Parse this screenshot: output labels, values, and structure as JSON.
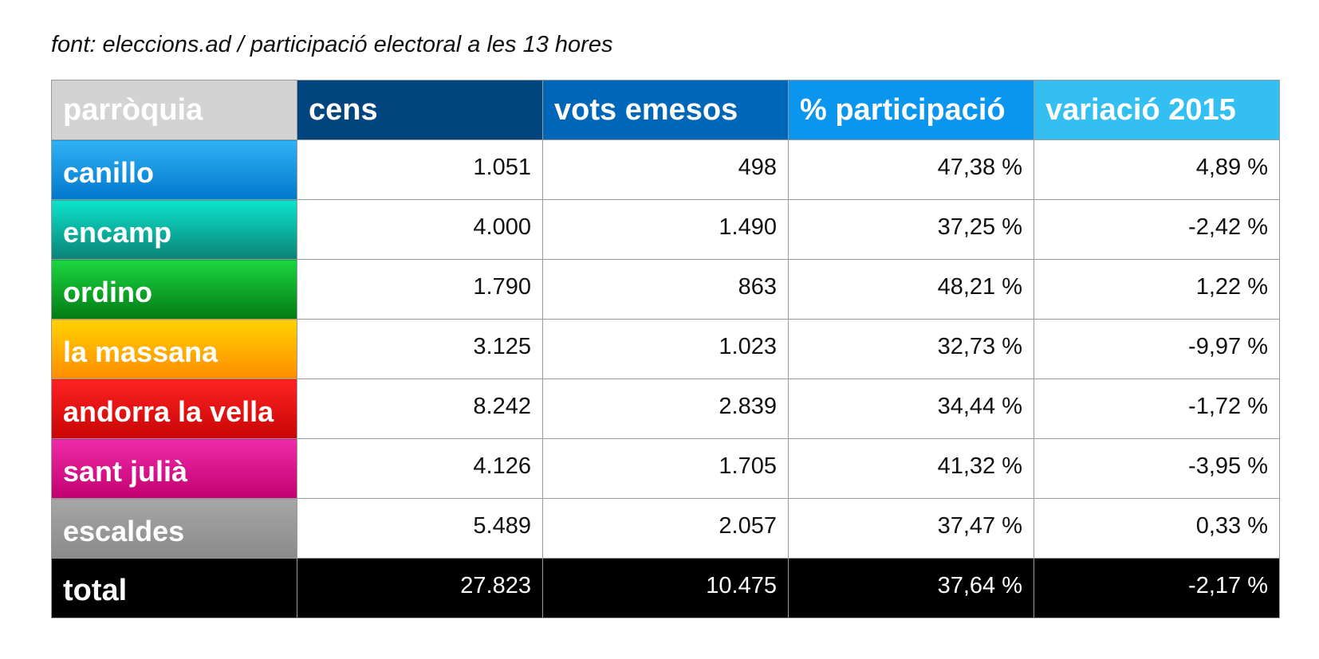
{
  "caption": "font: eleccions.ad / participació electoral a les 13 hores",
  "table": {
    "headers": [
      {
        "label": "parròquia",
        "color": "#d3d3d3"
      },
      {
        "label": "cens",
        "color": "#01457f"
      },
      {
        "label": "vots emesos",
        "color": "#0066b8"
      },
      {
        "label": "% participació",
        "color": "#0a96ef"
      },
      {
        "label": "variació 2015",
        "color": "#33bff2"
      }
    ],
    "rows": [
      {
        "parish": "canillo",
        "gradient": [
          "#2fb2f5",
          "#0277cc"
        ],
        "cens": "1.051",
        "vots": "498",
        "participacio": "47,38 %",
        "variacio": "4,89 %"
      },
      {
        "parish": "encamp",
        "gradient": [
          "#0ce4cb",
          "#0a8276"
        ],
        "cens": "4.000",
        "vots": "1.490",
        "participacio": "37,25 %",
        "variacio": "-2,42 %"
      },
      {
        "parish": "ordino",
        "gradient": [
          "#1bd640",
          "#037a14"
        ],
        "cens": "1.790",
        "vots": "863",
        "participacio": "48,21 %",
        "variacio": "1,22 %"
      },
      {
        "parish": "la massana",
        "gradient": [
          "#ffd200",
          "#ff8c00"
        ],
        "cens": "3.125",
        "vots": "1.023",
        "participacio": "32,73 %",
        "variacio": "-9,97 %"
      },
      {
        "parish": "andorra la vella",
        "gradient": [
          "#fe2222",
          "#c80505"
        ],
        "cens": "8.242",
        "vots": "2.839",
        "participacio": "34,44 %",
        "variacio": "-1,72 %"
      },
      {
        "parish": "sant julià",
        "gradient": [
          "#f02aa8",
          "#c20070"
        ],
        "cens": "4.126",
        "vots": "1.705",
        "participacio": "41,32 %",
        "variacio": "-3,95 %"
      },
      {
        "parish": "escaldes",
        "gradient": [
          "#a6a6a6",
          "#8a8a8a"
        ],
        "cens": "5.489",
        "vots": "2.057",
        "participacio": "37,47 %",
        "variacio": "0,33 %"
      }
    ],
    "total": {
      "label": "total",
      "cens": "27.823",
      "vots": "10.475",
      "participacio": "37,64 %",
      "variacio": "-2,17 %"
    }
  }
}
